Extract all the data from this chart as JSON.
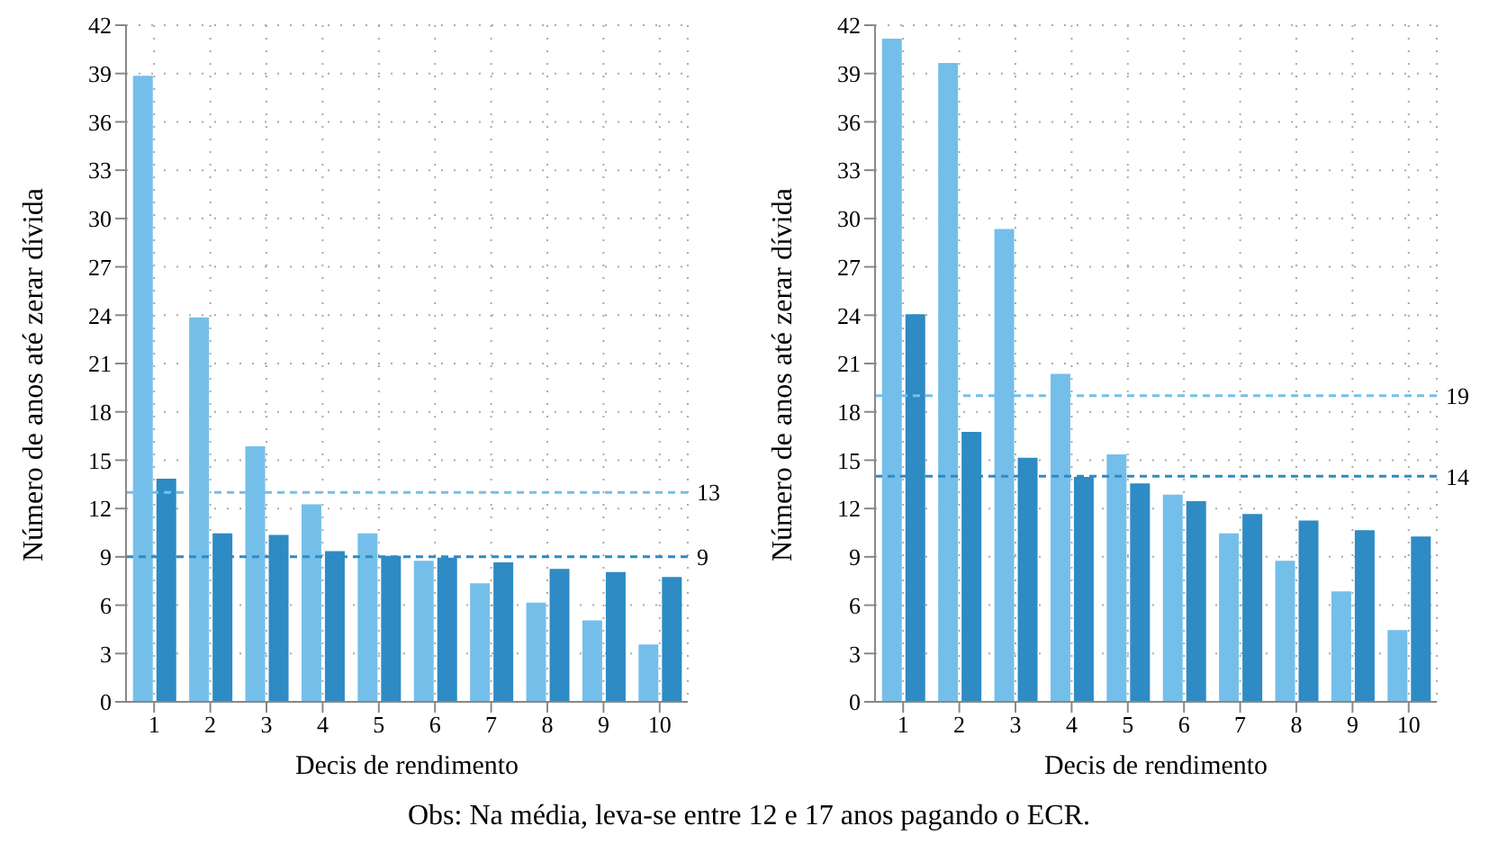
{
  "chart_data": [
    {
      "type": "bar",
      "xlabel": "Decis de rendimento",
      "ylabel": "Número de anos até zerar dívida",
      "categories": [
        "1",
        "2",
        "3",
        "4",
        "5",
        "6",
        "7",
        "8",
        "9",
        "10"
      ],
      "series": [
        {
          "color": "#74bfea",
          "values": [
            38.8,
            23.8,
            15.8,
            12.2,
            10.4,
            8.7,
            7.3,
            6.1,
            5.0,
            3.5
          ]
        },
        {
          "color": "#2e8bc4",
          "values": [
            13.8,
            10.4,
            10.3,
            9.3,
            9.0,
            8.9,
            8.6,
            8.2,
            8.0,
            7.7
          ]
        }
      ],
      "ylim": [
        0,
        42
      ],
      "yticks": [
        0,
        3,
        6,
        9,
        12,
        15,
        18,
        21,
        24,
        27,
        30,
        33,
        36,
        39,
        42
      ],
      "grid": true,
      "ref_lines": [
        {
          "axis": "y",
          "value": 13,
          "label": "13",
          "color": "#74bfea",
          "line_style": "dashed"
        },
        {
          "axis": "y",
          "value": 9,
          "label": "9",
          "color": "#2e8bc4",
          "line_style": "dashed"
        }
      ],
      "annotations": [
        "Obs: Na média, leva-se entre 12 e 17 anos pagando o ECR."
      ]
    },
    {
      "type": "bar",
      "xlabel": "Decis de rendimento",
      "ylabel": "Número de anos até zerar dívida",
      "categories": [
        "1",
        "2",
        "3",
        "4",
        "5",
        "6",
        "7",
        "8",
        "9",
        "10"
      ],
      "series": [
        {
          "color": "#74bfea",
          "values": [
            41.1,
            39.6,
            29.3,
            20.3,
            15.3,
            12.8,
            10.4,
            8.7,
            6.8,
            4.4
          ]
        },
        {
          "color": "#2e8bc4",
          "values": [
            24.0,
            16.7,
            15.1,
            13.9,
            13.5,
            12.4,
            11.6,
            11.2,
            10.6,
            10.2
          ]
        }
      ],
      "ylim": [
        0,
        42
      ],
      "yticks": [
        0,
        3,
        6,
        9,
        12,
        15,
        18,
        21,
        24,
        27,
        30,
        33,
        36,
        39,
        42
      ],
      "grid": true,
      "ref_lines": [
        {
          "axis": "y",
          "value": 19,
          "label": "19",
          "color": "#74bfea",
          "line_style": "dashed"
        },
        {
          "axis": "y",
          "value": 14,
          "label": "14",
          "color": "#2e8bc4",
          "line_style": "dashed"
        }
      ]
    }
  ]
}
